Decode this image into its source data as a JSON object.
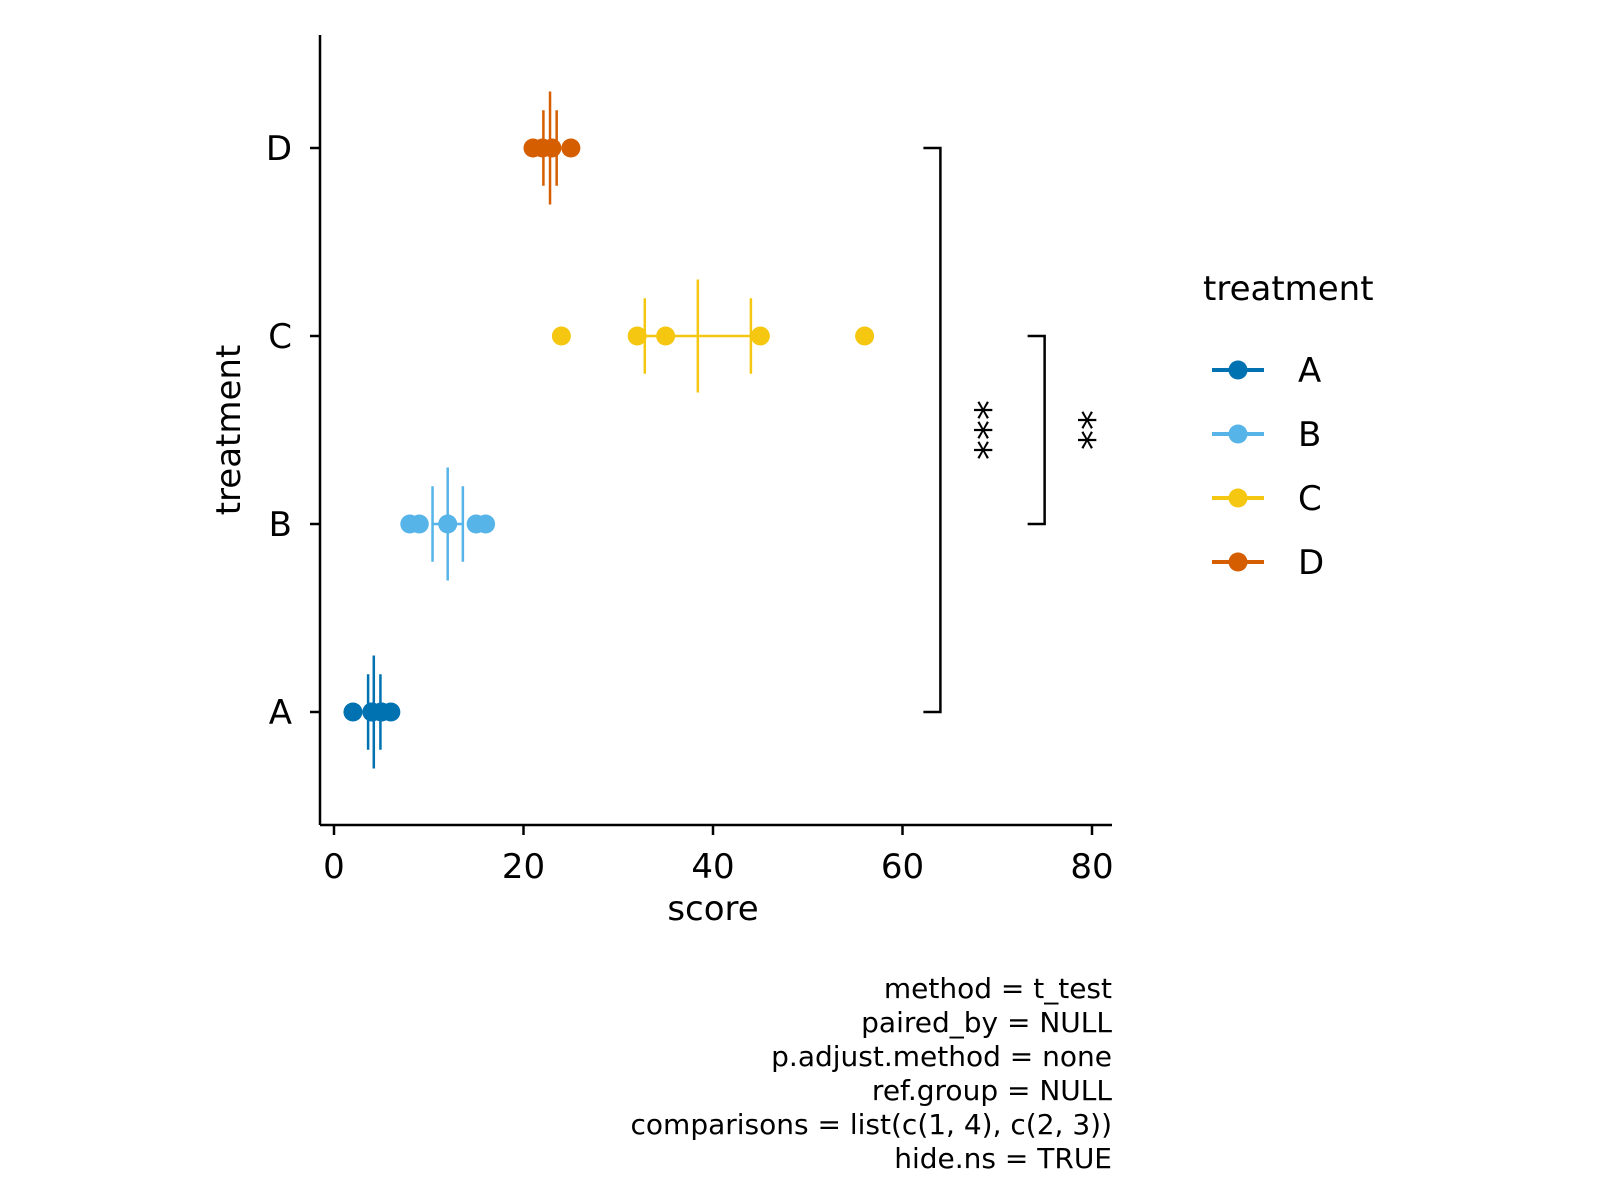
{
  "chart_data": {
    "type": "scatter",
    "orientation": "horizontal",
    "xlabel": "score",
    "ylabel": "treatment",
    "xlim": [
      -1.6,
      82
    ],
    "x_ticks": [
      0,
      20,
      40,
      60,
      80
    ],
    "categories": [
      "A",
      "B",
      "C",
      "D"
    ],
    "series": [
      {
        "name": "A",
        "color": "#0072B2",
        "points": [
          2,
          4,
          5,
          6,
          4,
          5
        ],
        "errorbars": [
          {
            "x": 4.2,
            "half_height": 0.3
          },
          {
            "x": 3.6,
            "half_height": 0.2
          },
          {
            "x": 4.9,
            "half_height": 0.2
          }
        ]
      },
      {
        "name": "B",
        "color": "#56B4E9",
        "points": [
          8,
          9,
          12,
          15,
          16
        ],
        "errorbars": [
          {
            "x": 12,
            "half_height": 0.3
          },
          {
            "x": 10.4,
            "half_height": 0.2
          },
          {
            "x": 13.6,
            "half_height": 0.2
          }
        ],
        "hline": [
          10.4,
          13.6
        ]
      },
      {
        "name": "C",
        "color": "#F5C710",
        "points": [
          24,
          32,
          35,
          45,
          56
        ],
        "errorbars": [
          {
            "x": 38.4,
            "half_height": 0.3
          },
          {
            "x": 32.8,
            "half_height": 0.2
          },
          {
            "x": 44,
            "half_height": 0.2
          }
        ],
        "hline": [
          32.8,
          44
        ]
      },
      {
        "name": "D",
        "color": "#D55E00",
        "points": [
          21,
          22,
          23,
          25
        ],
        "errorbars": [
          {
            "x": 22.8,
            "half_height": 0.3
          },
          {
            "x": 22.1,
            "half_height": 0.2
          },
          {
            "x": 23.5,
            "half_height": 0.2
          }
        ]
      }
    ],
    "comparisons": [
      {
        "from": "A",
        "to": "D",
        "x": 64,
        "label": "***"
      },
      {
        "from": "B",
        "to": "C",
        "x": 75,
        "label": "**"
      }
    ],
    "legend": {
      "title": "treatment",
      "position": "right",
      "entries": [
        "A",
        "B",
        "C",
        "D"
      ]
    },
    "grid": false
  },
  "caption_lines": [
    "method = t_test",
    "paired_by = NULL",
    "p.adjust.method = none",
    "ref.group = NULL",
    "comparisons = list(c(1, 4), c(2, 3))",
    "hide.ns = TRUE"
  ]
}
